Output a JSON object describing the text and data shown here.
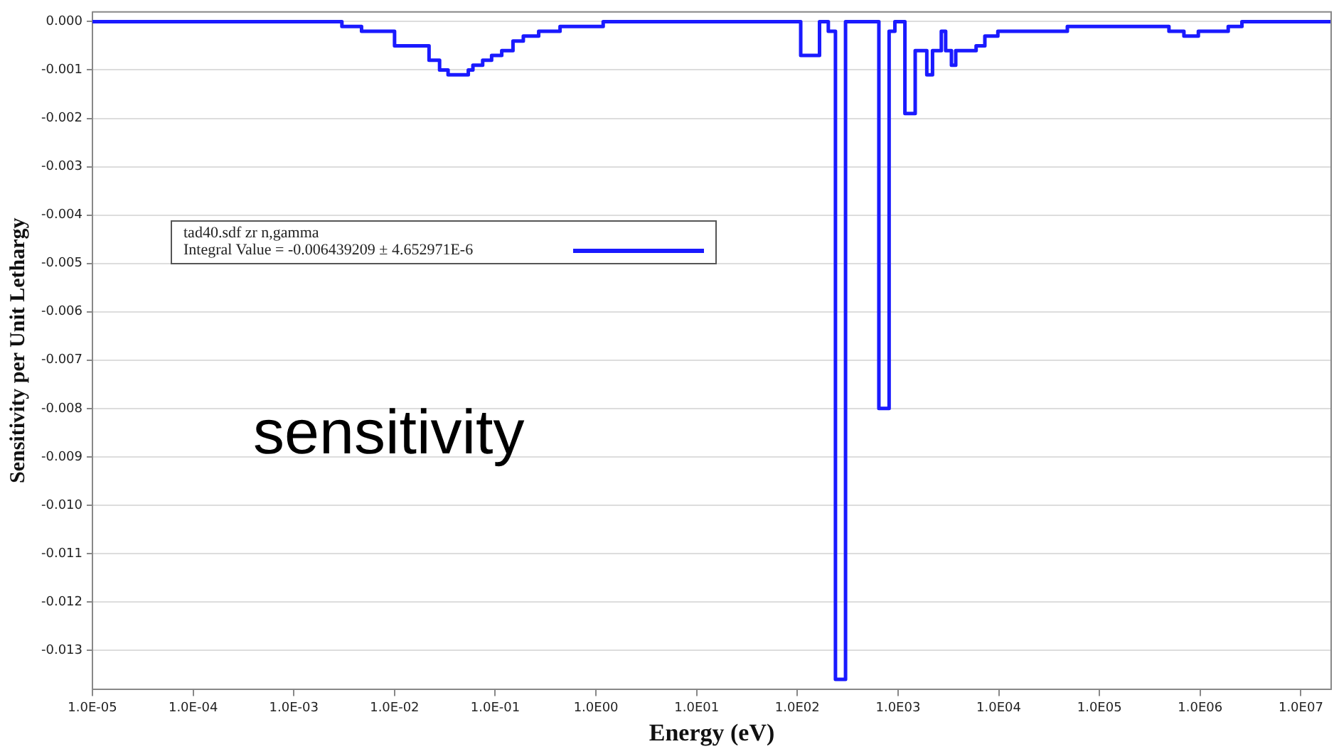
{
  "chart_data": {
    "type": "step",
    "xlabel": "Energy (eV)",
    "ylabel": "Sensitivity per Unit Lethargy",
    "legend_title": "tad40.sdf zr n,gamma",
    "log": "x",
    "grid": "y",
    "legend": "top left",
    "marker": "none",
    "line_style": "solid",
    "annotations": [
      "sensitivity"
    ],
    "xlim": [
      1e-05,
      20000000
    ],
    "ylim": [
      -0.0138,
      0.0002
    ],
    "xticks": [
      {
        "value": 1e-05,
        "label": "1.0E-05"
      },
      {
        "value": 0.0001,
        "label": "1.0E-04"
      },
      {
        "value": 0.001,
        "label": "1.0E-03"
      },
      {
        "value": 0.01,
        "label": "1.0E-02"
      },
      {
        "value": 0.1,
        "label": "1.0E-01"
      },
      {
        "value": 1,
        "label": "1.0E00"
      },
      {
        "value": 10,
        "label": "1.0E01"
      },
      {
        "value": 100,
        "label": "1.0E02"
      },
      {
        "value": 1000,
        "label": "1.0E03"
      },
      {
        "value": 10000,
        "label": "1.0E04"
      },
      {
        "value": 100000,
        "label": "1.0E05"
      },
      {
        "value": 1000000,
        "label": "1.0E06"
      },
      {
        "value": 10000000,
        "label": "1.0E07"
      }
    ],
    "yticks": [
      {
        "value": 0,
        "label": "0.000"
      },
      {
        "value": -0.001,
        "label": "-0.001"
      },
      {
        "value": -0.002,
        "label": "-0.002"
      },
      {
        "value": -0.003,
        "label": "-0.003"
      },
      {
        "value": -0.004,
        "label": "-0.004"
      },
      {
        "value": -0.005,
        "label": "-0.005"
      },
      {
        "value": -0.006,
        "label": "-0.006"
      },
      {
        "value": -0.007,
        "label": "-0.007"
      },
      {
        "value": -0.008,
        "label": "-0.008"
      },
      {
        "value": -0.009,
        "label": "-0.009"
      },
      {
        "value": -0.01,
        "label": "-0.010"
      },
      {
        "value": -0.011,
        "label": "-0.011"
      },
      {
        "value": -0.012,
        "label": "-0.012"
      },
      {
        "value": -0.013,
        "label": "-0.013"
      }
    ],
    "series": [
      {
        "name": "Integral Value = -0.006439209 ± 4.652971E-6",
        "color": "#1a1aff",
        "x": [
          1e-05,
          0.00123,
          0.003,
          0.0047,
          0.0074,
          0.01,
          0.022,
          0.028,
          0.034,
          0.054,
          0.06,
          0.075,
          0.092,
          0.116,
          0.15,
          0.19,
          0.27,
          0.44,
          0.85,
          1.18,
          2.3,
          8.7,
          108,
          166,
          203,
          239,
          301,
          565,
          645,
          815,
          930,
          1170,
          1480,
          1750,
          1930,
          2200,
          2690,
          2970,
          3390,
          3740,
          5960,
          7280,
          9800,
          25000,
          48000,
          94000,
          180000,
          490000,
          690000,
          960000,
          1900000,
          2600000,
          20000000
        ],
        "values": [
          0,
          0,
          -0.0001,
          -0.0002,
          -0.0002,
          -0.0005,
          -0.0008,
          -0.001,
          -0.0011,
          -0.001,
          -0.0009,
          -0.0008,
          -0.0007,
          -0.0006,
          -0.0004,
          -0.0003,
          -0.0002,
          -0.0001,
          -0.0001,
          0,
          0,
          0,
          -0.0007,
          0,
          -0.0002,
          -0.0136,
          0,
          0,
          -0.008,
          -0.0002,
          0,
          -0.0019,
          -0.0006,
          -0.0006,
          -0.0011,
          -0.0006,
          -0.0002,
          -0.0006,
          -0.0009,
          -0.0006,
          -0.0005,
          -0.0003,
          -0.0002,
          -0.0002,
          -0.0001,
          -0.0001,
          -0.0001,
          -0.0002,
          -0.0003,
          -0.0002,
          -0.0001,
          0,
          0
        ]
      }
    ]
  }
}
